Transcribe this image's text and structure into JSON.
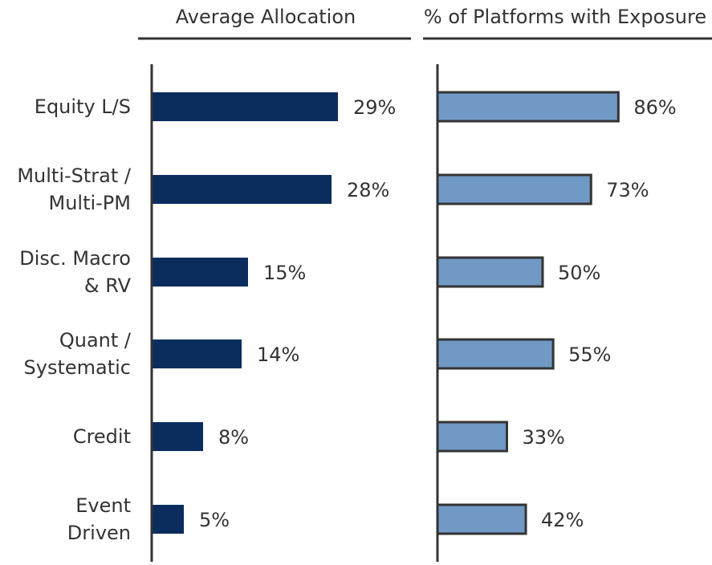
{
  "chart_data": [
    {
      "type": "bar",
      "orientation": "horizontal",
      "title": "Average Allocation",
      "categories": [
        [
          "Equity L/S"
        ],
        [
          "Multi-Strat /",
          "Multi-PM"
        ],
        [
          "Disc. Macro",
          "& RV"
        ],
        [
          "Quant /",
          "Systematic"
        ],
        [
          "Credit"
        ],
        [
          "Event",
          "Driven"
        ]
      ],
      "values": [
        29,
        28,
        15,
        14,
        8,
        5
      ],
      "data_labels": [
        "29%",
        "28%",
        "15%",
        "14%",
        "8%",
        "5%"
      ],
      "unit": "%",
      "xlim": [
        0,
        40
      ],
      "grid": false,
      "color": "#0b2d5e"
    },
    {
      "type": "bar",
      "orientation": "horizontal",
      "title": "% of Platforms with Exposure",
      "categories": [
        [
          "Equity L/S"
        ],
        [
          "Multi-Strat /",
          "Multi-PM"
        ],
        [
          "Disc. Macro",
          "& RV"
        ],
        [
          "Quant /",
          "Systematic"
        ],
        [
          "Credit"
        ],
        [
          "Event",
          "Driven"
        ]
      ],
      "values": [
        86,
        73,
        50,
        55,
        33,
        42
      ],
      "data_labels": [
        "86%",
        "73%",
        "50%",
        "55%",
        "33%",
        "42%"
      ],
      "unit": "%",
      "xlim": [
        0,
        130
      ],
      "grid": false,
      "color": "#7199c6",
      "border_color": "#333333"
    }
  ]
}
